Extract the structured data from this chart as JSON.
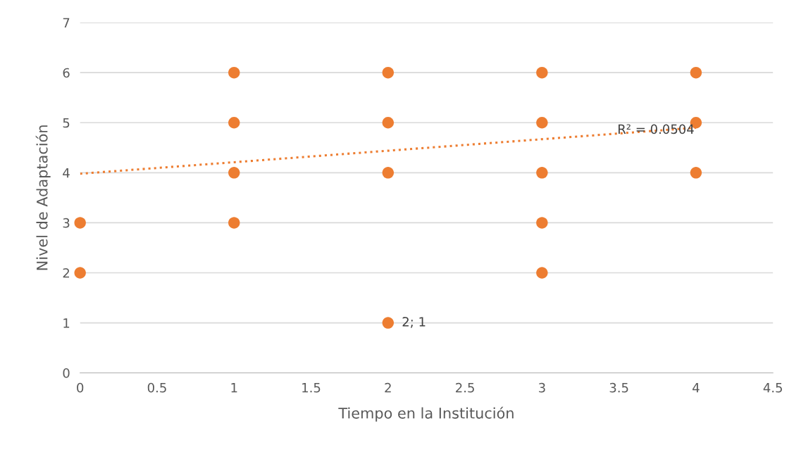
{
  "chart_data": {
    "type": "scatter",
    "xlabel": "Tiempo en la Institución",
    "ylabel": "Nivel de Adaptación",
    "series": [
      {
        "color": "#ed7d31",
        "marker": "circle",
        "x": [
          0,
          0,
          1,
          1,
          1,
          1,
          2,
          2,
          2,
          2,
          3,
          3,
          3,
          3,
          3,
          4,
          4,
          4
        ],
        "values": [
          3,
          2,
          6,
          5,
          4,
          3,
          6,
          5,
          4,
          1,
          6,
          5,
          4,
          3,
          2,
          6,
          5,
          4
        ]
      },
      {
        "type": "line",
        "color": "#ed7d31",
        "line_style": "dotted",
        "x": [
          0,
          4
        ],
        "values": [
          3.98,
          4.9
        ]
      }
    ],
    "annotations": [
      {
        "text": "R² = 0.0504",
        "x": 3.4,
        "y": 4.85
      },
      {
        "text": "2; 1",
        "x": 2,
        "y": 1
      }
    ],
    "xlim": [
      0,
      4.5
    ],
    "xticks": [
      0,
      0.5,
      1,
      1.5,
      2,
      2.5,
      3,
      3.5,
      4,
      4.5
    ],
    "ylim": [
      0,
      7
    ],
    "yticks": [
      0,
      1,
      2,
      3,
      4,
      5,
      6,
      7
    ],
    "grid": "y"
  }
}
